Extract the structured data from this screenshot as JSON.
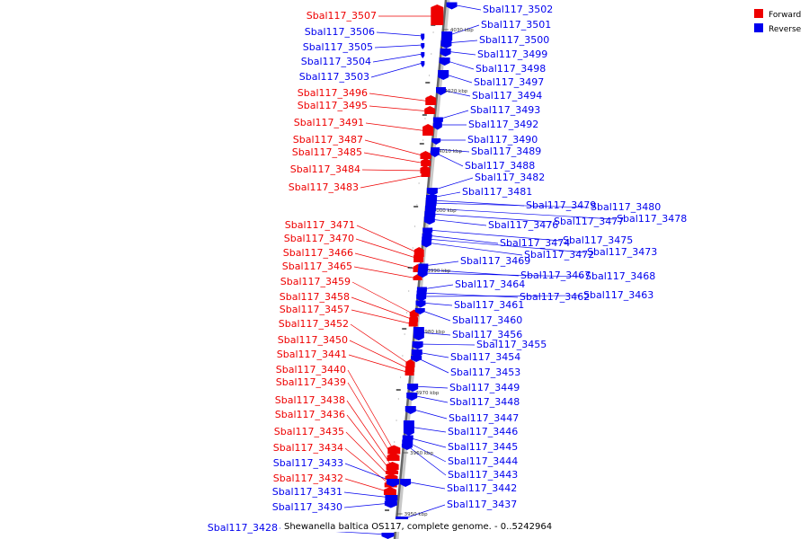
{
  "legend": {
    "forward_label": "Forward",
    "reverse_label": "Reverse",
    "forward_color": "#ee0000",
    "reverse_color": "#0000ee"
  },
  "caption": "Shewanella baltica OS117, complete genome. - 0..5242964",
  "ticks": [
    "4030 kbp",
    "4020 kbp",
    "4010 kbp",
    "4000 kbp",
    "3990 kbp",
    "3980 kbp",
    "3970 kbp",
    "3960 kbp",
    "3950 kbp"
  ],
  "forward_genes": [
    "Sbal117_3507",
    "Sbal117_3496",
    "Sbal117_3495",
    "Sbal117_3491",
    "Sbal117_3487",
    "Sbal117_3485",
    "Sbal117_3484",
    "Sbal117_3483",
    "Sbal117_3471",
    "Sbal117_3470",
    "Sbal117_3466",
    "Sbal117_3465",
    "Sbal117_3459",
    "Sbal117_3458",
    "Sbal117_3457",
    "Sbal117_3452",
    "Sbal117_3450",
    "Sbal117_3441",
    "Sbal117_3440",
    "Sbal117_3439",
    "Sbal117_3438",
    "Sbal117_3436",
    "Sbal117_3435",
    "Sbal117_3434",
    "Sbal117_3432"
  ],
  "reverse_left_genes": [
    "Sbal117_3506",
    "Sbal117_3505",
    "Sbal117_3504",
    "Sbal117_3503",
    "Sbal117_3433",
    "Sbal117_3431",
    "Sbal117_3430",
    "Sbal117_3428"
  ],
  "reverse_genes": [
    "Sbal117_3502",
    "Sbal117_3501",
    "Sbal117_3500",
    "Sbal117_3499",
    "Sbal117_3498",
    "Sbal117_3497",
    "Sbal117_3494",
    "Sbal117_3493",
    "Sbal117_3492",
    "Sbal117_3490",
    "Sbal117_3489",
    "Sbal117_3488",
    "Sbal117_3482",
    "Sbal117_3481",
    "Sbal117_3479",
    "Sbal117_3480",
    "Sbal117_3478",
    "Sbal117_3477",
    "Sbal117_3476",
    "Sbal117_3475",
    "Sbal117_3474",
    "Sbal117_3473",
    "Sbal117_3472",
    "Sbal117_3469",
    "Sbal117_3467",
    "Sbal117_3468",
    "Sbal117_3464",
    "Sbal117_3462",
    "Sbal117_3463",
    "Sbal117_3461",
    "Sbal117_3460",
    "Sbal117_3456",
    "Sbal117_3455",
    "Sbal117_3454",
    "Sbal117_3453",
    "Sbal117_3449",
    "Sbal117_3448",
    "Sbal117_3447",
    "Sbal117_3446",
    "Sbal117_3445",
    "Sbal117_3444",
    "Sbal117_3443",
    "Sbal117_3442",
    "Sbal117_3437"
  ]
}
